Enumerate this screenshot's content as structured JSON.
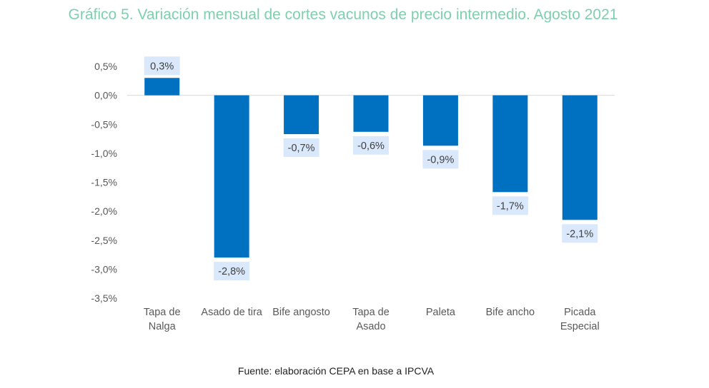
{
  "chart_data": {
    "type": "bar",
    "title": "Gráfico 5. Variación mensual de cortes vacunos de precio intermedio. Agosto 2021",
    "xlabel": "",
    "ylabel": "",
    "categories": [
      [
        "Tapa de",
        "Nalga"
      ],
      [
        "Asado de tira"
      ],
      [
        "Bife angosto"
      ],
      [
        "Tapa de",
        "Asado"
      ],
      [
        "Paleta"
      ],
      [
        "Bife ancho"
      ],
      [
        "Picada",
        "Especial"
      ]
    ],
    "values": [
      0.3,
      -2.8,
      -0.67,
      -0.63,
      -0.87,
      -1.67,
      -2.15
    ],
    "data_labels": [
      "0,3%",
      "-2,8%",
      "-0,7%",
      "-0,6%",
      "-0,9%",
      "-1,7%",
      "-2,1%"
    ],
    "ylim": [
      -3.5,
      0.5
    ],
    "yticks": [
      0.5,
      0.0,
      -0.5,
      -1.0,
      -1.5,
      -2.0,
      -2.5,
      -3.0,
      -3.5
    ],
    "ytick_labels": [
      "0,5%",
      "0,0%",
      "-0,5%",
      "-1,0%",
      "-1,5%",
      "-2,0%",
      "-2,5%",
      "-3,0%",
      "-3,5%"
    ],
    "grid": false,
    "legend": "none",
    "colors": {
      "bar": "#0070c0",
      "label_bg": "#dae8fc",
      "title": "#7fcfae",
      "zero_line": "#d9d9d9"
    },
    "source": "Fuente: elaboración CEPA en base a IPCVA"
  }
}
